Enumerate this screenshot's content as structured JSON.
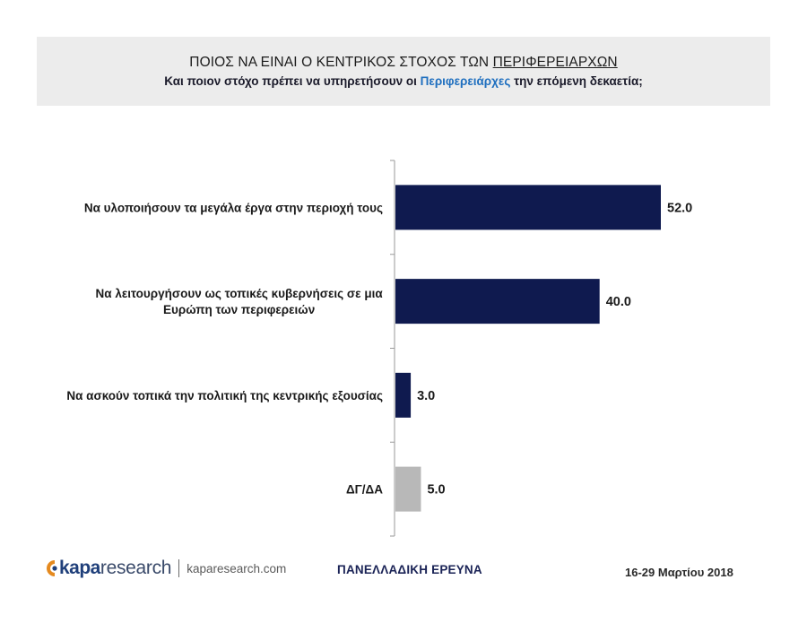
{
  "header": {
    "title_prefix": "ΠΟΙΟΣ ΝΑ ΕΙΝΑΙ Ο ΚΕΝΤΡΙΚΟΣ ΣΤΟΧΟΣ ΤΩΝ ",
    "title_underlined": "ΠΕΡΙΦΕΡΕΙΑΡΧΩΝ",
    "subtitle_prefix": "Και ποιον στόχο πρέπει να υπηρετήσουν οι ",
    "subtitle_highlight": "Περιφερειάρχες",
    "subtitle_suffix": " την επόμενη δεκαετία;",
    "highlight_color": "#1f6fbf"
  },
  "chart_data": {
    "type": "bar",
    "orientation": "horizontal",
    "categories": [
      [
        "Να υλοποιήσουν τα μεγάλα έργα στην περιοχή τους"
      ],
      [
        "Να λειτουργήσουν ως τοπικές κυβερνήσεις σε μια",
        "Ευρώπη των περιφερειών"
      ],
      [
        "Να ασκούν τοπικά την πολιτική της κεντρικής εξουσίας"
      ],
      [
        "ΔΓ/ΔΑ"
      ]
    ],
    "values": [
      52.0,
      40.0,
      3.0,
      5.0
    ],
    "value_labels": [
      "52.0",
      "40.0",
      "3.0",
      "5.0"
    ],
    "colors": [
      "#0f1a4f",
      "#0f1a4f",
      "#0f1a4f",
      "#b8b8b8"
    ],
    "xlim": [
      0,
      60
    ],
    "grid": false,
    "legend": "none"
  },
  "footer": {
    "logo_kapa": "kapa",
    "logo_research": "research",
    "website": "kaparesearch.com",
    "survey_label": "ΠΑΝΕΛΛΑΔΙΚΗ ΕΡΕΥΝΑ",
    "date": "16-29 Μαρτίου 2018"
  }
}
